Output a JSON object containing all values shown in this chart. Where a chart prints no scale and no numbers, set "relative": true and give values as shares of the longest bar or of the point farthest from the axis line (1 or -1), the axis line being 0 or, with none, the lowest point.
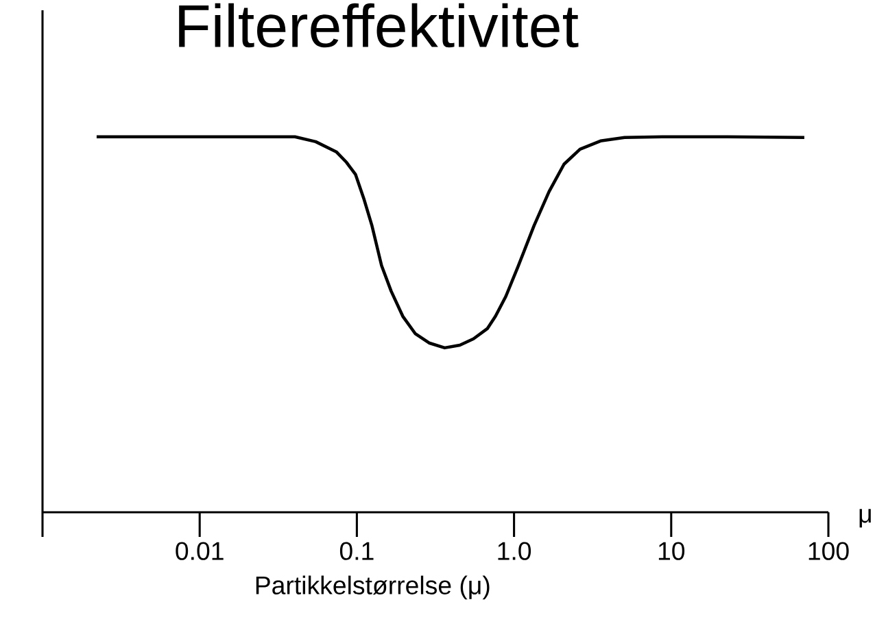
{
  "chart_data": {
    "type": "line",
    "title": "Filtereffektivitet",
    "xlabel": "Partikkelstørrelse (μ)",
    "relative": true,
    "log": "x",
    "color": "#000000",
    "x": [
      0.00221,
      0.0404,
      0.0547,
      0.074,
      0.0859,
      0.098,
      0.1106,
      0.1248,
      0.1436,
      0.1653,
      0.196,
      0.235,
      0.288,
      0.362,
      0.452,
      0.552,
      0.676,
      0.762,
      0.887,
      1.062,
      1.34,
      1.67,
      2.08,
      2.63,
      3.55,
      5.05,
      8.77,
      22.8,
      70.3
    ],
    "values": [
      1,
      1,
      0.987,
      0.96,
      0.932,
      0.9,
      0.836,
      0.763,
      0.657,
      0.589,
      0.522,
      0.476,
      0.451,
      0.438,
      0.445,
      0.462,
      0.489,
      0.522,
      0.575,
      0.655,
      0.763,
      0.854,
      0.927,
      0.967,
      0.989,
      0.998,
      1,
      1,
      0.998
    ],
    "xlim": [
      0.001,
      100
    ],
    "xticks": [
      {
        "value": 0.001,
        "label": null
      },
      0.01,
      0.1,
      {
        "value": 1,
        "label": "1.0"
      },
      10,
      100
    ],
    "annotations": [
      "μ"
    ]
  }
}
